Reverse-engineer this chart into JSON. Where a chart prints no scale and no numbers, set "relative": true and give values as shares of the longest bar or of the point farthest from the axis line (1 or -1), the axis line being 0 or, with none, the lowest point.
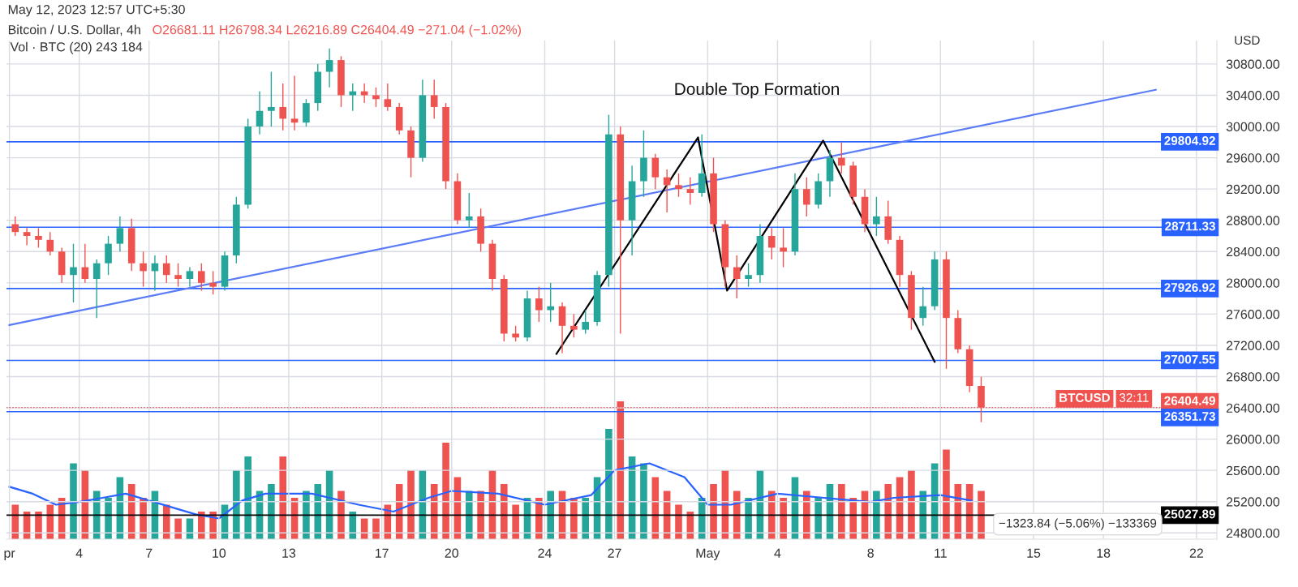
{
  "chart_data": [
    {
      "type": "candlestick",
      "title": "Bitcoin / U.S. Dollar, 4h",
      "subtitle": "O26681.11 H26798.34 L26216.89 C26404.49 −271.04 (−1.02%)",
      "ylabel": "USD",
      "annotations": [
        "May 12, 2023 12:57 UTC+5:30",
        "Vol · BTC (20) 243 184",
        "Double Top Formation",
        "BTCUSD",
        "32:11",
        "−1323.84 (−5.06%) −133369"
      ],
      "x": [
        "2023-04-01T06:00",
        "2023-04-01T18:00",
        "2023-04-02T06:00",
        "2023-04-02T18:00",
        "2023-04-03T06:00",
        "2023-04-03T18:00",
        "2023-04-04T06:00",
        "2023-04-04T18:00",
        "2023-04-05T06:00",
        "2023-04-05T18:00",
        "2023-04-06T06:00",
        "2023-04-06T18:00",
        "2023-04-07T06:00",
        "2023-04-07T18:00",
        "2023-04-08T06:00",
        "2023-04-08T18:00",
        "2023-04-09T06:00",
        "2023-04-09T18:00",
        "2023-04-10T06:00",
        "2023-04-10T18:00",
        "2023-04-11T06:00",
        "2023-04-11T18:00",
        "2023-04-12T06:00",
        "2023-04-12T18:00",
        "2023-04-13T06:00",
        "2023-04-13T18:00",
        "2023-04-14T06:00",
        "2023-04-14T18:00",
        "2023-04-15T06:00",
        "2023-04-15T18:00",
        "2023-04-16T06:00",
        "2023-04-16T18:00",
        "2023-04-17T06:00",
        "2023-04-17T18:00",
        "2023-04-18T06:00",
        "2023-04-18T18:00",
        "2023-04-19T06:00",
        "2023-04-19T18:00",
        "2023-04-20T06:00",
        "2023-04-20T18:00",
        "2023-04-21T06:00",
        "2023-04-21T18:00",
        "2023-04-22T06:00",
        "2023-04-22T18:00",
        "2023-04-23T06:00",
        "2023-04-23T18:00",
        "2023-04-24T06:00",
        "2023-04-24T18:00",
        "2023-04-25T06:00",
        "2023-04-25T18:00",
        "2023-04-26T06:00",
        "2023-04-26T18:00",
        "2023-04-27T06:00",
        "2023-04-27T18:00",
        "2023-04-28T06:00",
        "2023-04-28T18:00",
        "2023-04-29T06:00",
        "2023-04-29T18:00",
        "2023-04-30T06:00",
        "2023-04-30T18:00",
        "2023-05-01T06:00",
        "2023-05-01T18:00",
        "2023-05-02T06:00",
        "2023-05-02T18:00",
        "2023-05-03T06:00",
        "2023-05-03T18:00",
        "2023-05-04T06:00",
        "2023-05-04T18:00",
        "2023-05-05T06:00",
        "2023-05-05T18:00",
        "2023-05-06T06:00",
        "2023-05-06T18:00",
        "2023-05-07T06:00",
        "2023-05-07T18:00",
        "2023-05-08T06:00",
        "2023-05-08T18:00",
        "2023-05-09T06:00",
        "2023-05-09T18:00",
        "2023-05-10T06:00",
        "2023-05-10T18:00",
        "2023-05-11T06:00",
        "2023-05-11T18:00",
        "2023-05-12T06:00",
        "2023-05-12T18:00"
      ],
      "ohlc": [
        [
          28750,
          28850,
          28600,
          28650
        ],
        [
          28650,
          28700,
          28480,
          28600
        ],
        [
          28600,
          28700,
          28450,
          28550
        ],
        [
          28550,
          28650,
          28350,
          28400
        ],
        [
          28400,
          28450,
          28000,
          28100
        ],
        [
          28100,
          28500,
          27750,
          28200
        ],
        [
          28200,
          28500,
          28000,
          28050
        ],
        [
          28050,
          28300,
          27550,
          28250
        ],
        [
          28250,
          28600,
          28100,
          28500
        ],
        [
          28500,
          28850,
          28400,
          28700
        ],
        [
          28700,
          28820,
          28150,
          28250
        ],
        [
          28250,
          28400,
          27950,
          28150
        ],
        [
          28150,
          28350,
          27900,
          28250
        ],
        [
          28250,
          28350,
          28000,
          28100
        ],
        [
          28100,
          28250,
          27950,
          28050
        ],
        [
          28050,
          28200,
          27950,
          28150
        ],
        [
          28150,
          28250,
          27900,
          28000
        ],
        [
          28000,
          28150,
          27850,
          27950
        ],
        [
          27950,
          28400,
          27900,
          28350
        ],
        [
          28350,
          29100,
          28250,
          29000
        ],
        [
          29000,
          30100,
          28950,
          30000
        ],
        [
          30000,
          30450,
          29900,
          30200
        ],
        [
          30200,
          30700,
          30000,
          30250
        ],
        [
          30250,
          30550,
          29950,
          30100
        ],
        [
          30100,
          30650,
          29950,
          30050
        ],
        [
          30050,
          30350,
          30000,
          30300
        ],
        [
          30300,
          30800,
          30200,
          30700
        ],
        [
          30700,
          31000,
          30500,
          30850
        ],
        [
          30850,
          30900,
          30250,
          30400
        ],
        [
          30400,
          30550,
          30200,
          30450
        ],
        [
          30450,
          30550,
          30300,
          30400
        ],
        [
          30400,
          30500,
          30250,
          30350
        ],
        [
          30350,
          30550,
          30200,
          30250
        ],
        [
          30250,
          30300,
          29900,
          29950
        ],
        [
          29950,
          30000,
          29350,
          29600
        ],
        [
          29600,
          30600,
          29550,
          30400
        ],
        [
          30400,
          30600,
          30100,
          30250
        ],
        [
          30250,
          30300,
          29200,
          29300
        ],
        [
          29300,
          29400,
          28750,
          28800
        ],
        [
          28800,
          29150,
          28700,
          28850
        ],
        [
          28850,
          28950,
          28400,
          28500
        ],
        [
          28500,
          28550,
          27900,
          28050
        ],
        [
          28050,
          28100,
          27250,
          27350
        ],
        [
          27350,
          27450,
          27250,
          27300
        ],
        [
          27300,
          27900,
          27250,
          27800
        ],
        [
          27800,
          27950,
          27500,
          27650
        ],
        [
          27650,
          28000,
          27500,
          27700
        ],
        [
          27700,
          27750,
          27100,
          27450
        ],
        [
          27450,
          27600,
          27300,
          27400
        ],
        [
          27400,
          27650,
          27350,
          27500
        ],
        [
          27500,
          28150,
          27450,
          28100
        ],
        [
          28100,
          30150,
          27950,
          29900
        ],
        [
          29900,
          30000,
          27350,
          28800
        ],
        [
          28800,
          29500,
          28350,
          29300
        ],
        [
          29300,
          29950,
          29100,
          29600
        ],
        [
          29600,
          29650,
          29200,
          29350
        ],
        [
          29350,
          29450,
          28900,
          29250
        ],
        [
          29250,
          29400,
          29100,
          29200
        ],
        [
          29200,
          29350,
          29000,
          29150
        ],
        [
          29150,
          29900,
          29100,
          29400
        ],
        [
          29400,
          29600,
          28650,
          28750
        ],
        [
          28750,
          28800,
          27950,
          28200
        ],
        [
          28200,
          28350,
          27800,
          28050
        ],
        [
          28050,
          28250,
          27950,
          28100
        ],
        [
          28100,
          28750,
          28000,
          28600
        ],
        [
          28600,
          28700,
          28300,
          28450
        ],
        [
          28450,
          28700,
          28200,
          28400
        ],
        [
          28400,
          29400,
          28350,
          29200
        ],
        [
          29200,
          29350,
          28850,
          29000
        ],
        [
          29000,
          29400,
          28950,
          29300
        ],
        [
          29300,
          29700,
          29100,
          29600
        ],
        [
          29600,
          29800,
          29400,
          29500
        ],
        [
          29500,
          29550,
          29000,
          29100
        ],
        [
          29100,
          29200,
          28650,
          28750
        ],
        [
          28750,
          29100,
          28600,
          28850
        ],
        [
          28850,
          29050,
          28500,
          28550
        ],
        [
          28550,
          28600,
          27950,
          28100
        ],
        [
          28100,
          28150,
          27400,
          27550
        ],
        [
          27550,
          27950,
          27450,
          27700
        ],
        [
          27700,
          28400,
          27650,
          28300
        ],
        [
          28300,
          28400,
          26900,
          27550
        ],
        [
          27550,
          27650,
          27100,
          27150
        ],
        [
          27150,
          27200,
          26600,
          26680
        ],
        [
          26681.11,
          26798.34,
          26216.89,
          26404.49
        ]
      ],
      "colors": [
        "#ef5350",
        "#ef5350",
        "#ef5350",
        "#ef5350",
        "#ef5350",
        "#26a69a",
        "#ef5350",
        "#26a69a",
        "#26a69a",
        "#26a69a",
        "#ef5350",
        "#ef5350",
        "#26a69a",
        "#ef5350",
        "#ef5350",
        "#26a69a",
        "#ef5350",
        "#ef5350",
        "#26a69a",
        "#26a69a",
        "#26a69a",
        "#26a69a",
        "#26a69a",
        "#ef5350",
        "#ef5350",
        "#26a69a",
        "#26a69a",
        "#26a69a",
        "#ef5350",
        "#26a69a",
        "#ef5350",
        "#ef5350",
        "#ef5350",
        "#ef5350",
        "#ef5350",
        "#26a69a",
        "#ef5350",
        "#ef5350",
        "#ef5350",
        "#26a69a",
        "#ef5350",
        "#ef5350",
        "#ef5350",
        "#ef5350",
        "#26a69a",
        "#ef5350",
        "#26a69a",
        "#ef5350",
        "#ef5350",
        "#26a69a",
        "#26a69a",
        "#26a69a",
        "#ef5350",
        "#26a69a",
        "#26a69a",
        "#ef5350",
        "#ef5350",
        "#ef5350",
        "#ef5350",
        "#26a69a",
        "#ef5350",
        "#ef5350",
        "#ef5350",
        "#26a69a",
        "#26a69a",
        "#ef5350",
        "#ef5350",
        "#26a69a",
        "#ef5350",
        "#26a69a",
        "#26a69a",
        "#ef5350",
        "#ef5350",
        "#ef5350",
        "#26a69a",
        "#ef5350",
        "#ef5350",
        "#ef5350",
        "#26a69a",
        "#26a69a",
        "#ef5350",
        "#ef5350",
        "#ef5350",
        "#ef5350"
      ],
      "series": [
        {
          "type": "line",
          "color": "#5b7cf7",
          "x": [
            "2023-04-01T00:00",
            "2023-05-20T06:00"
          ],
          "values": [
            27460,
            30470
          ]
        },
        {
          "type": "line",
          "color": "#000000",
          "x": [
            "2023-04-24T12:00",
            "2023-04-30T14:00",
            "2023-05-01T20:00",
            "2023-05-05T23:00",
            "2023-05-10T18:00"
          ],
          "values": [
            27090,
            29860,
            27900,
            29820,
            26990
          ]
        }
      ],
      "ref_lines": [
        {
          "axis": "y",
          "value": 29804.92,
          "label": "29804.92",
          "color": "#2962ff"
        },
        {
          "axis": "y",
          "value": 28711.33,
          "label": "28711.33",
          "color": "#2962ff"
        },
        {
          "axis": "y",
          "value": 27926.92,
          "label": "27926.92",
          "color": "#2962ff"
        },
        {
          "axis": "y",
          "value": 27007.55,
          "label": "27007.55",
          "color": "#2962ff"
        },
        {
          "axis": "y",
          "value": 26404.49,
          "label": "26404.49",
          "color": "#ef5350",
          "line_style": "dotted"
        },
        {
          "axis": "y",
          "value": 26351.73,
          "label": "26351.73",
          "color": "#2962ff"
        },
        {
          "axis": "y",
          "value": 25027.89,
          "label": "25027.89",
          "color": "#000000"
        }
      ],
      "xlim": [
        "2023-03-31T21:00",
        "2023-05-22T21:00"
      ],
      "xticks": [
        {
          "value": "2023-04-01",
          "label": "pr"
        },
        {
          "value": "2023-04-04",
          "label": "4"
        },
        {
          "value": "2023-04-07",
          "label": "7"
        },
        {
          "value": "2023-04-10",
          "label": "10"
        },
        {
          "value": "2023-04-13",
          "label": "13"
        },
        {
          "value": "2023-04-17",
          "label": "17"
        },
        {
          "value": "2023-04-20",
          "label": "20"
        },
        {
          "value": "2023-04-24",
          "label": "24"
        },
        {
          "value": "2023-04-27",
          "label": "27"
        },
        {
          "value": "2023-05-01",
          "label": "May"
        },
        {
          "value": "2023-05-04",
          "label": "4"
        },
        {
          "value": "2023-05-08",
          "label": "8"
        },
        {
          "value": "2023-05-11",
          "label": "11"
        },
        {
          "value": "2023-05-15",
          "label": "15"
        },
        {
          "value": "2023-05-18",
          "label": "18"
        },
        {
          "value": "2023-05-22",
          "label": "22"
        }
      ],
      "ylim": [
        24720,
        31100
      ],
      "yticks": [
        {
          "value": 24800,
          "label": "24800.00"
        },
        {
          "value": 25200,
          "label": "25200.00"
        },
        {
          "value": 25600,
          "label": "25600.00"
        },
        {
          "value": 26000,
          "label": "26000.00"
        },
        {
          "value": 26400,
          "label": "26400.00"
        },
        {
          "value": 26800,
          "label": "26800.00"
        },
        {
          "value": 27200,
          "label": "27200.00"
        },
        {
          "value": 27600,
          "label": "27600.00"
        },
        {
          "value": 28000,
          "label": "28000.00"
        },
        {
          "value": 28400,
          "label": "28400.00"
        },
        {
          "value": 28800,
          "label": "28800.00"
        },
        {
          "value": 29200,
          "label": "29200.00"
        },
        {
          "value": 29600,
          "label": "29600.00"
        },
        {
          "value": 30000,
          "label": "30000.00"
        },
        {
          "value": 30400,
          "label": "30400.00"
        },
        {
          "value": 30800,
          "label": "30800.00"
        }
      ],
      "grid": true
    },
    {
      "type": "bar",
      "relative": true,
      "x": [
        "2023-04-01T06:00",
        "2023-04-01T18:00",
        "2023-04-02T06:00",
        "2023-04-02T18:00",
        "2023-04-03T06:00",
        "2023-04-03T18:00",
        "2023-04-04T06:00",
        "2023-04-04T18:00",
        "2023-04-05T06:00",
        "2023-04-05T18:00",
        "2023-04-06T06:00",
        "2023-04-06T18:00",
        "2023-04-07T06:00",
        "2023-04-07T18:00",
        "2023-04-08T06:00",
        "2023-04-08T18:00",
        "2023-04-09T06:00",
        "2023-04-09T18:00",
        "2023-04-10T06:00",
        "2023-04-10T18:00",
        "2023-04-11T06:00",
        "2023-04-11T18:00",
        "2023-04-12T06:00",
        "2023-04-12T18:00",
        "2023-04-13T06:00",
        "2023-04-13T18:00",
        "2023-04-14T06:00",
        "2023-04-14T18:00",
        "2023-04-15T06:00",
        "2023-04-15T18:00",
        "2023-04-16T06:00",
        "2023-04-16T18:00",
        "2023-04-17T06:00",
        "2023-04-17T18:00",
        "2023-04-18T06:00",
        "2023-04-18T18:00",
        "2023-04-19T06:00",
        "2023-04-19T18:00",
        "2023-04-20T06:00",
        "2023-04-20T18:00",
        "2023-04-21T06:00",
        "2023-04-21T18:00",
        "2023-04-22T06:00",
        "2023-04-22T18:00",
        "2023-04-23T06:00",
        "2023-04-23T18:00",
        "2023-04-24T06:00",
        "2023-04-24T18:00",
        "2023-04-25T06:00",
        "2023-04-25T18:00",
        "2023-04-26T06:00",
        "2023-04-26T18:00",
        "2023-04-27T06:00",
        "2023-04-27T18:00",
        "2023-04-28T06:00",
        "2023-04-28T18:00",
        "2023-04-29T06:00",
        "2023-04-29T18:00",
        "2023-04-30T06:00",
        "2023-04-30T18:00",
        "2023-05-01T06:00",
        "2023-05-01T18:00",
        "2023-05-02T06:00",
        "2023-05-02T18:00",
        "2023-05-03T06:00",
        "2023-05-03T18:00",
        "2023-05-04T06:00",
        "2023-05-04T18:00",
        "2023-05-05T06:00",
        "2023-05-05T18:00",
        "2023-05-06T06:00",
        "2023-05-06T18:00",
        "2023-05-07T06:00",
        "2023-05-07T18:00",
        "2023-05-08T06:00",
        "2023-05-08T18:00",
        "2023-05-09T06:00",
        "2023-05-09T18:00",
        "2023-05-10T06:00",
        "2023-05-10T18:00",
        "2023-05-11T06:00",
        "2023-05-11T18:00",
        "2023-05-12T06:00",
        "2023-05-12T18:00"
      ],
      "xlim": [
        "2023-03-31T21:00",
        "2023-05-22T21:00"
      ],
      "series": [
        {
          "type": "bar",
          "values": [
            0.25,
            0.2,
            0.2,
            0.25,
            0.3,
            0.55,
            0.5,
            0.35,
            0.3,
            0.45,
            0.4,
            0.3,
            0.35,
            0.25,
            0.15,
            0.15,
            0.2,
            0.2,
            0.25,
            0.5,
            0.6,
            0.35,
            0.4,
            0.6,
            0.3,
            0.35,
            0.4,
            0.5,
            0.35,
            0.2,
            0.15,
            0.15,
            0.25,
            0.4,
            0.5,
            0.5,
            0.4,
            0.7,
            0.45,
            0.35,
            0.35,
            0.5,
            0.4,
            0.25,
            0.3,
            0.3,
            0.35,
            0.35,
            0.3,
            0.3,
            0.45,
            0.8,
            1.0,
            0.6,
            0.55,
            0.45,
            0.35,
            0.25,
            0.2,
            0.3,
            0.4,
            0.5,
            0.35,
            0.3,
            0.5,
            0.35,
            0.3,
            0.45,
            0.35,
            0.3,
            0.4,
            0.4,
            0.3,
            0.35,
            0.35,
            0.4,
            0.45,
            0.5,
            0.35,
            0.55,
            0.65,
            0.4,
            0.4,
            0.35
          ],
          "colors": [
            "#ef5350",
            "#ef5350",
            "#ef5350",
            "#ef5350",
            "#ef5350",
            "#26a69a",
            "#ef5350",
            "#26a69a",
            "#26a69a",
            "#26a69a",
            "#ef5350",
            "#ef5350",
            "#26a69a",
            "#ef5350",
            "#ef5350",
            "#26a69a",
            "#ef5350",
            "#ef5350",
            "#26a69a",
            "#26a69a",
            "#26a69a",
            "#26a69a",
            "#26a69a",
            "#ef5350",
            "#ef5350",
            "#26a69a",
            "#26a69a",
            "#26a69a",
            "#ef5350",
            "#26a69a",
            "#ef5350",
            "#ef5350",
            "#ef5350",
            "#ef5350",
            "#ef5350",
            "#26a69a",
            "#ef5350",
            "#ef5350",
            "#ef5350",
            "#26a69a",
            "#ef5350",
            "#ef5350",
            "#ef5350",
            "#ef5350",
            "#26a69a",
            "#ef5350",
            "#26a69a",
            "#ef5350",
            "#ef5350",
            "#26a69a",
            "#26a69a",
            "#26a69a",
            "#ef5350",
            "#26a69a",
            "#26a69a",
            "#ef5350",
            "#ef5350",
            "#ef5350",
            "#ef5350",
            "#26a69a",
            "#ef5350",
            "#ef5350",
            "#ef5350",
            "#26a69a",
            "#26a69a",
            "#ef5350",
            "#ef5350",
            "#26a69a",
            "#ef5350",
            "#26a69a",
            "#26a69a",
            "#ef5350",
            "#ef5350",
            "#ef5350",
            "#26a69a",
            "#ef5350",
            "#ef5350",
            "#ef5350",
            "#26a69a",
            "#26a69a",
            "#ef5350",
            "#ef5350",
            "#ef5350",
            "#ef5350"
          ]
        },
        {
          "type": "line",
          "color": "#2962ff",
          "x": [
            "2023-04-01T00:00",
            "2023-04-02T00:00",
            "2023-04-03T00:00",
            "2023-04-04T00:00",
            "2023-04-05T00:00",
            "2023-04-06T00:00",
            "2023-04-07T00:00",
            "2023-04-09T00:00",
            "2023-04-10T00:00",
            "2023-04-11T00:00",
            "2023-04-12T00:00",
            "2023-04-14T00:00",
            "2023-04-16T00:00",
            "2023-04-17T12:00",
            "2023-04-19T00:00",
            "2023-04-20T00:00",
            "2023-04-22T00:00",
            "2023-04-24T00:00",
            "2023-04-26T00:00",
            "2023-04-27T00:00",
            "2023-04-28T12:00",
            "2023-04-30T00:00",
            "2023-05-01T00:00",
            "2023-05-02T00:00",
            "2023-05-04T00:00",
            "2023-05-06T00:00",
            "2023-05-08T00:00",
            "2023-05-09T00:00",
            "2023-05-11T00:00",
            "2023-05-12T08:00"
          ],
          "values": [
            0.38,
            0.33,
            0.25,
            0.27,
            0.3,
            0.33,
            0.28,
            0.18,
            0.15,
            0.28,
            0.33,
            0.33,
            0.25,
            0.2,
            0.3,
            0.35,
            0.33,
            0.25,
            0.32,
            0.5,
            0.55,
            0.45,
            0.25,
            0.25,
            0.33,
            0.3,
            0.27,
            0.3,
            0.32,
            0.28
          ]
        }
      ]
    }
  ]
}
